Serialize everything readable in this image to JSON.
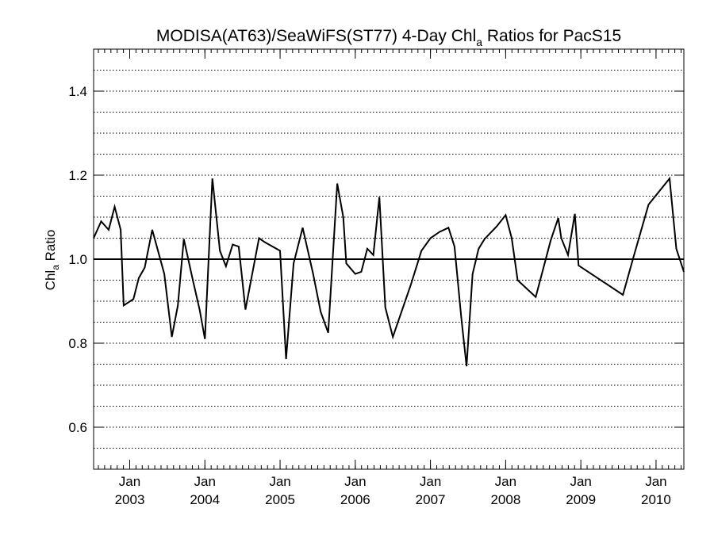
{
  "chart_data": {
    "type": "line",
    "title_main": "MODISA(AT63)/SeaWiFS(ST77) 4-Day Chl",
    "title_sub": "a",
    "title_rest": " Ratios for PacS15",
    "ylabel_main": "Chl",
    "ylabel_sub": "a",
    "ylabel_rest": " Ratio",
    "xlabel": "",
    "x_unit": "decimal year",
    "xlim": [
      2002.52,
      2010.37
    ],
    "ylim": [
      0.5,
      1.5
    ],
    "grid": true,
    "reference_line": 1.0,
    "y_ticks": [
      {
        "value": 0.6,
        "label": "0.6"
      },
      {
        "value": 0.8,
        "label": "0.8"
      },
      {
        "value": 1.0,
        "label": "1.0"
      },
      {
        "value": 1.2,
        "label": "1.2"
      },
      {
        "value": 1.4,
        "label": "1.4"
      }
    ],
    "x_ticks": [
      {
        "value": 2003.0,
        "month": "Jan",
        "year": "2003"
      },
      {
        "value": 2004.0,
        "month": "Jan",
        "year": "2004"
      },
      {
        "value": 2005.0,
        "month": "Jan",
        "year": "2005"
      },
      {
        "value": 2006.0,
        "month": "Jan",
        "year": "2006"
      },
      {
        "value": 2007.0,
        "month": "Jan",
        "year": "2007"
      },
      {
        "value": 2008.0,
        "month": "Jan",
        "year": "2008"
      },
      {
        "value": 2009.0,
        "month": "Jan",
        "year": "2009"
      },
      {
        "value": 2010.0,
        "month": "Jan",
        "year": "2010"
      }
    ],
    "series": [
      {
        "values": [
          [
            2002.52,
            1.05
          ],
          [
            2002.62,
            1.09
          ],
          [
            2002.72,
            1.07
          ],
          [
            2002.8,
            1.125
          ],
          [
            2002.88,
            1.07
          ],
          [
            2002.92,
            0.89
          ],
          [
            2003.05,
            0.905
          ],
          [
            2003.12,
            0.955
          ],
          [
            2003.2,
            0.98
          ],
          [
            2003.3,
            1.07
          ],
          [
            2003.46,
            0.965
          ],
          [
            2003.56,
            0.815
          ],
          [
            2003.64,
            0.89
          ],
          [
            2003.72,
            1.048
          ],
          [
            2003.84,
            0.95
          ],
          [
            2003.93,
            0.88
          ],
          [
            2004.0,
            0.81
          ],
          [
            2004.1,
            1.192
          ],
          [
            2004.2,
            1.02
          ],
          [
            2004.28,
            0.983
          ],
          [
            2004.37,
            1.035
          ],
          [
            2004.45,
            1.03
          ],
          [
            2004.54,
            0.88
          ],
          [
            2004.72,
            1.05
          ],
          [
            2004.8,
            1.04
          ],
          [
            2005.0,
            1.02
          ],
          [
            2005.08,
            0.762
          ],
          [
            2005.18,
            0.99
          ],
          [
            2005.3,
            1.075
          ],
          [
            2005.44,
            0.965
          ],
          [
            2005.54,
            0.875
          ],
          [
            2005.64,
            0.825
          ],
          [
            2005.76,
            1.18
          ],
          [
            2005.84,
            1.1
          ],
          [
            2005.88,
            0.99
          ],
          [
            2006.0,
            0.965
          ],
          [
            2006.08,
            0.97
          ],
          [
            2006.16,
            1.025
          ],
          [
            2006.24,
            1.01
          ],
          [
            2006.32,
            1.148
          ],
          [
            2006.4,
            0.885
          ],
          [
            2006.5,
            0.815
          ],
          [
            2006.74,
            0.94
          ],
          [
            2006.88,
            1.02
          ],
          [
            2007.0,
            1.05
          ],
          [
            2007.12,
            1.065
          ],
          [
            2007.24,
            1.075
          ],
          [
            2007.32,
            1.03
          ],
          [
            2007.41,
            0.86
          ],
          [
            2007.48,
            0.745
          ],
          [
            2007.56,
            0.965
          ],
          [
            2007.64,
            1.025
          ],
          [
            2007.72,
            1.048
          ],
          [
            2007.88,
            1.078
          ],
          [
            2008.0,
            1.105
          ],
          [
            2008.08,
            1.05
          ],
          [
            2008.16,
            0.95
          ],
          [
            2008.4,
            0.91
          ],
          [
            2008.6,
            1.045
          ],
          [
            2008.7,
            1.098
          ],
          [
            2008.74,
            1.05
          ],
          [
            2008.83,
            1.01
          ],
          [
            2008.92,
            1.108
          ],
          [
            2008.97,
            0.985
          ],
          [
            2009.56,
            0.915
          ],
          [
            2009.7,
            1.005
          ],
          [
            2009.9,
            1.13
          ],
          [
            2010.18,
            1.192
          ],
          [
            2010.27,
            1.025
          ],
          [
            2010.37,
            0.97
          ]
        ]
      }
    ]
  }
}
